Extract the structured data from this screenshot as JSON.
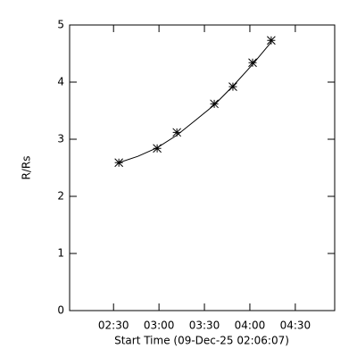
{
  "chart_data": {
    "type": "scatter",
    "x_label": "Start Time (09-Dec-25 02:06:07)",
    "y_label": "R/Rs",
    "x": [
      153.5,
      178.8,
      191.8,
      216.5,
      228.8,
      241.8,
      254.1
    ],
    "values": [
      2.59,
      2.84,
      3.12,
      3.62,
      3.92,
      4.34,
      4.73
    ],
    "marker": "asterisk",
    "color": "#000000",
    "fit_x": [
      153.5,
      166,
      178.8,
      191.8,
      204,
      216.5,
      228.8,
      241.8,
      254.1
    ],
    "fit_values": [
      2.59,
      2.7,
      2.85,
      3.07,
      3.33,
      3.6,
      3.93,
      4.31,
      4.7
    ],
    "xlim": [
      121,
      296
    ],
    "ylim": [
      0,
      5
    ],
    "xticks": [
      {
        "value": 150,
        "label": "02:30"
      },
      {
        "value": 180,
        "label": "03:00"
      },
      {
        "value": 210,
        "label": "03:30"
      },
      {
        "value": 240,
        "label": "04:00"
      },
      {
        "value": 270,
        "label": "04:30"
      }
    ],
    "yticks": [
      0,
      1,
      2,
      3,
      4,
      5
    ]
  }
}
